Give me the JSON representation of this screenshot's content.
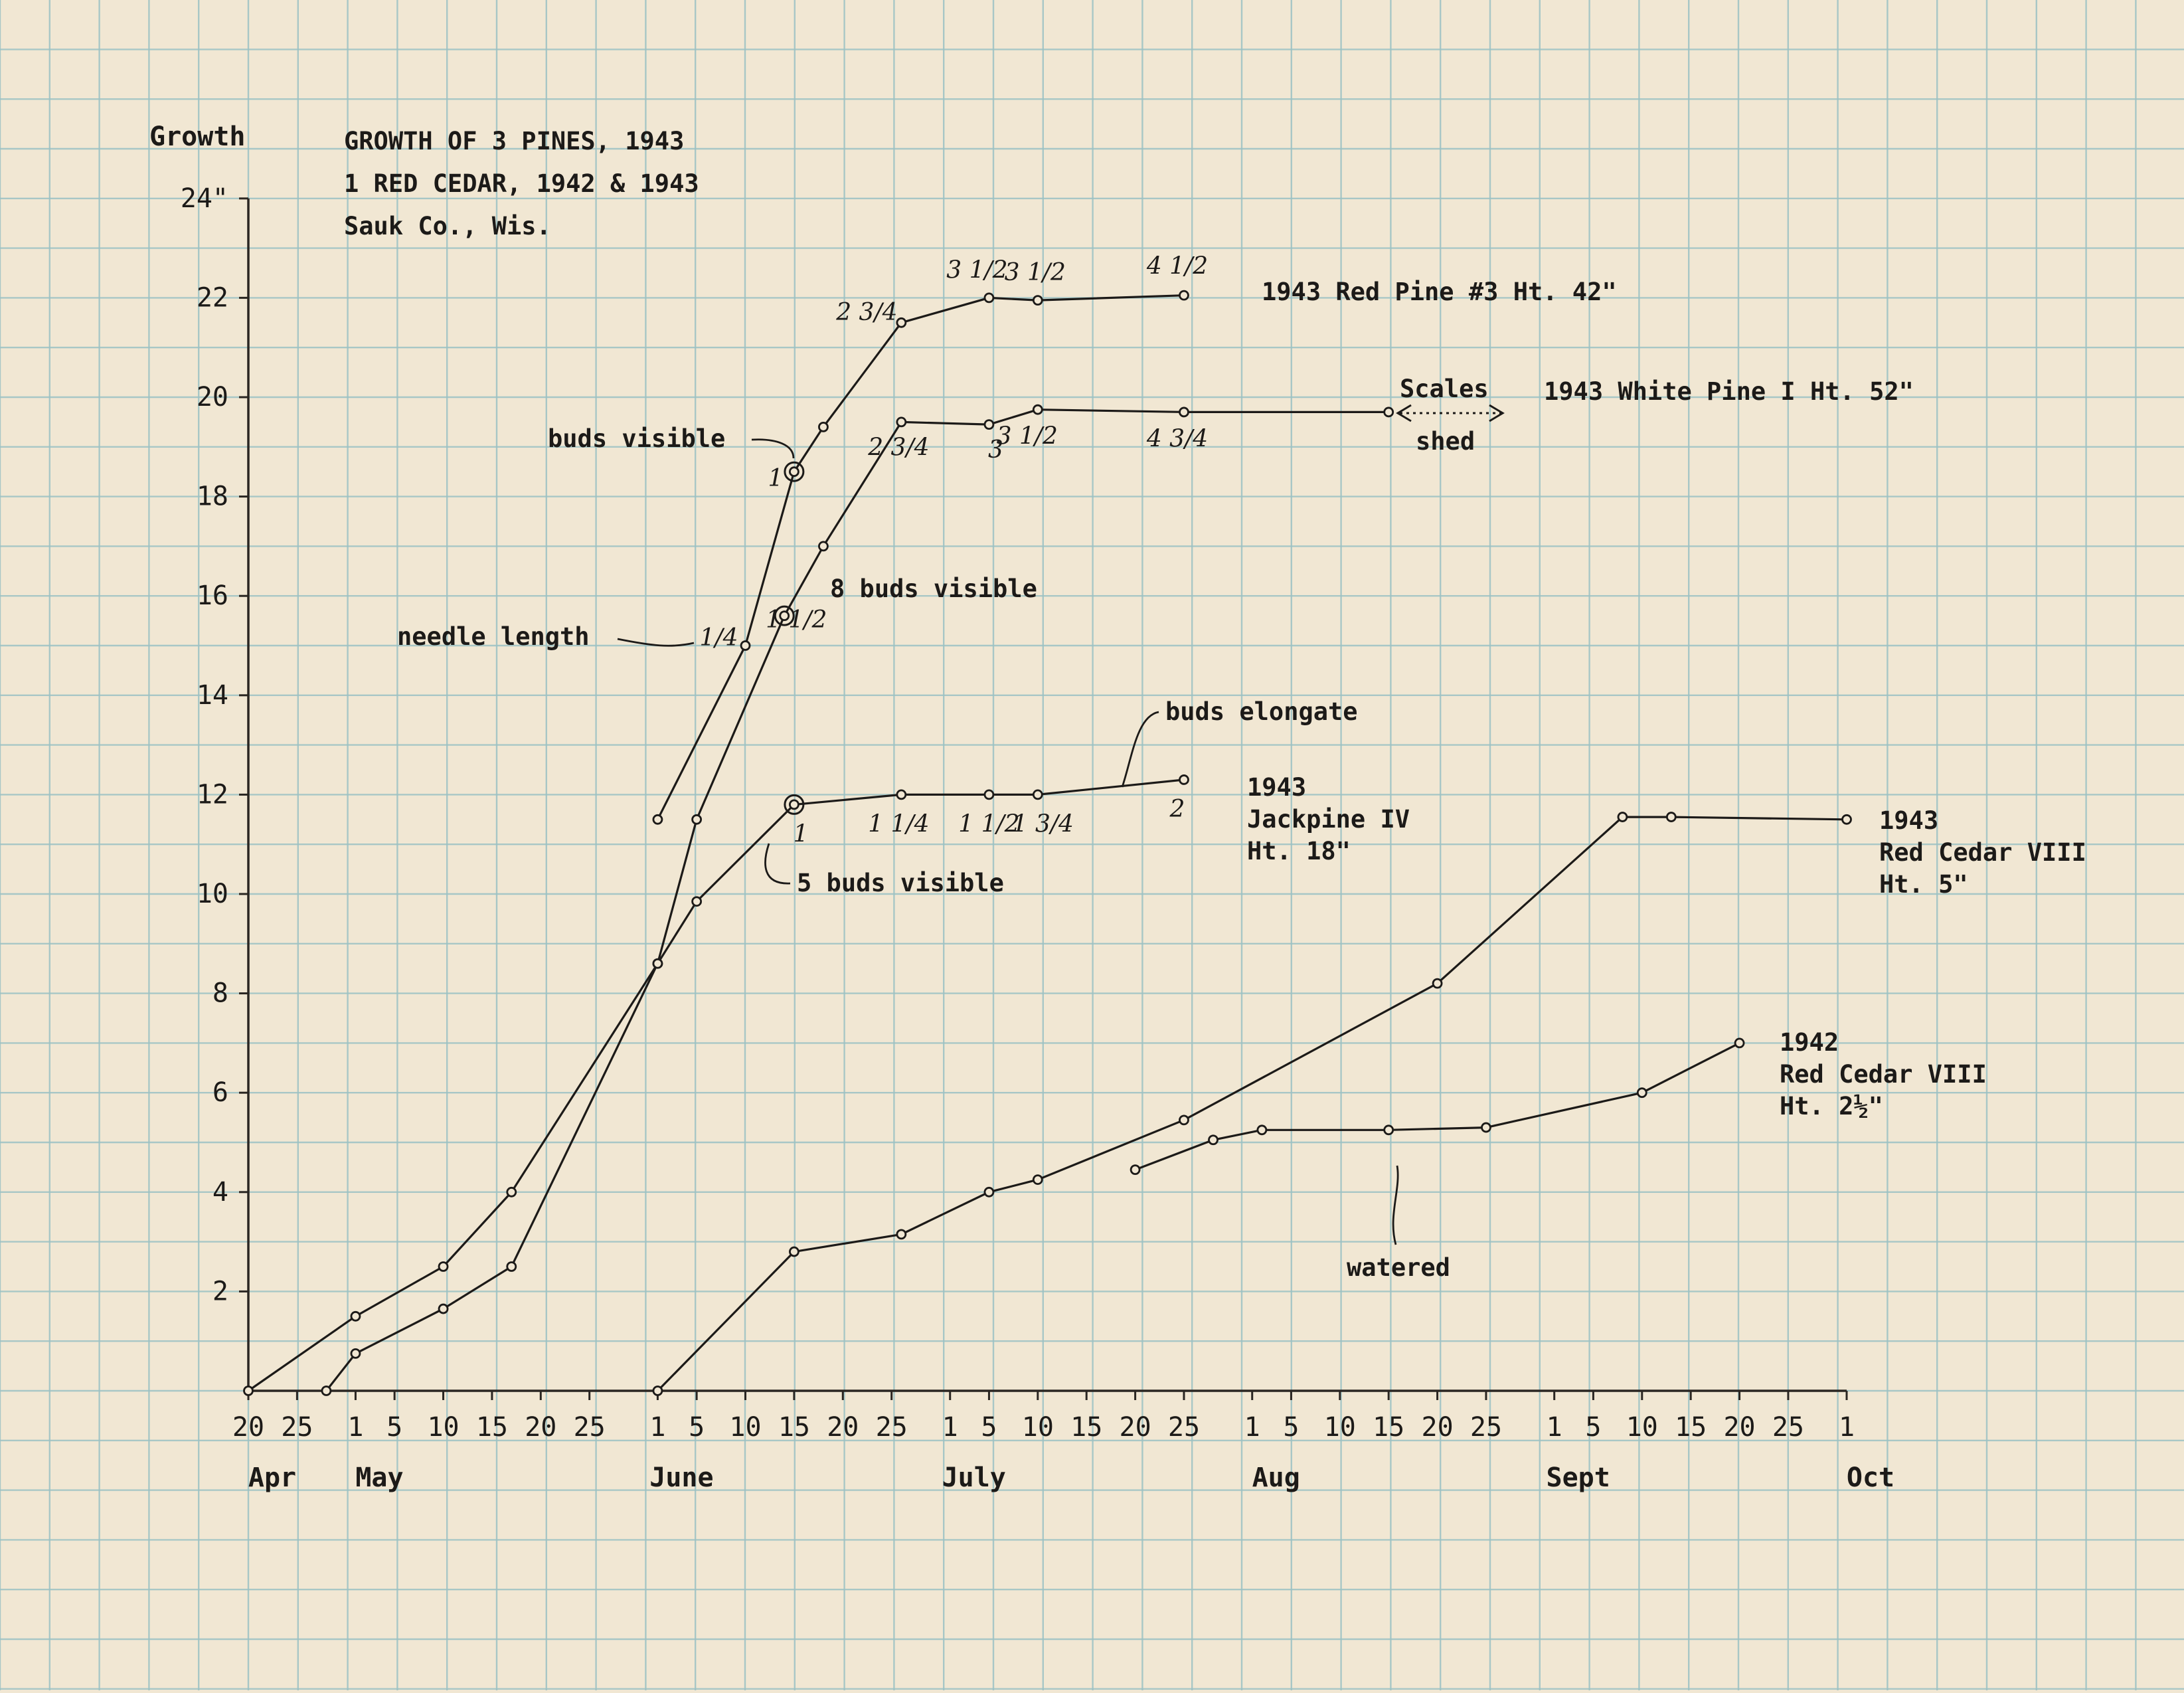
{
  "chart_data": {
    "type": "line",
    "title_lines": [
      "GROWTH OF 3 PINES, 1943",
      "1 RED CEDAR, 1942 & 1943",
      "Sauk Co., Wis."
    ],
    "ylabel": "Growth",
    "ylim": [
      0,
      24
    ],
    "yticks": [
      {
        "value": 2,
        "label": "2"
      },
      {
        "value": 4,
        "label": "4"
      },
      {
        "value": 6,
        "label": "6"
      },
      {
        "value": 8,
        "label": "8"
      },
      {
        "value": 10,
        "label": "10"
      },
      {
        "value": 12,
        "label": "12"
      },
      {
        "value": 14,
        "label": "14"
      },
      {
        "value": 16,
        "label": "16"
      },
      {
        "value": 18,
        "label": "18"
      },
      {
        "value": 20,
        "label": "20"
      },
      {
        "value": 22,
        "label": "22"
      },
      {
        "value": 24,
        "label": "24\""
      }
    ],
    "xlim": [
      "Apr 20",
      "Oct 1"
    ],
    "xticks": [
      {
        "date": "Apr 20",
        "label": "20"
      },
      {
        "date": "Apr 25",
        "label": "25"
      },
      {
        "date": "May 1",
        "label": "1"
      },
      {
        "date": "May 5",
        "label": "5"
      },
      {
        "date": "May 10",
        "label": "10"
      },
      {
        "date": "May 15",
        "label": "15"
      },
      {
        "date": "May 20",
        "label": "20"
      },
      {
        "date": "May 25",
        "label": "25"
      },
      {
        "date": "Jun 1",
        "label": "1"
      },
      {
        "date": "Jun 5",
        "label": "5"
      },
      {
        "date": "Jun 10",
        "label": "10"
      },
      {
        "date": "Jun 15",
        "label": "15"
      },
      {
        "date": "Jun 20",
        "label": "20"
      },
      {
        "date": "Jun 25",
        "label": "25"
      },
      {
        "date": "Jul 1",
        "label": "1"
      },
      {
        "date": "Jul 5",
        "label": "5"
      },
      {
        "date": "Jul 10",
        "label": "10"
      },
      {
        "date": "Jul 15",
        "label": "15"
      },
      {
        "date": "Jul 20",
        "label": "20"
      },
      {
        "date": "Jul 25",
        "label": "25"
      },
      {
        "date": "Aug 1",
        "label": "1"
      },
      {
        "date": "Aug 5",
        "label": "5"
      },
      {
        "date": "Aug 10",
        "label": "10"
      },
      {
        "date": "Aug 15",
        "label": "15"
      },
      {
        "date": "Aug 20",
        "label": "20"
      },
      {
        "date": "Aug 25",
        "label": "25"
      },
      {
        "date": "Sep 1",
        "label": "1"
      },
      {
        "date": "Sep 5",
        "label": "5"
      },
      {
        "date": "Sep 10",
        "label": "10"
      },
      {
        "date": "Sep 15",
        "label": "15"
      },
      {
        "date": "Sep 20",
        "label": "20"
      },
      {
        "date": "Sep 25",
        "label": "25"
      },
      {
        "date": "Oct 1",
        "label": "1"
      }
    ],
    "months": [
      {
        "date": "Apr 20",
        "label": "Apr"
      },
      {
        "date": "May 1",
        "label": "May"
      },
      {
        "date": "Jun 1",
        "label": "June"
      },
      {
        "date": "Jul 1",
        "label": "July"
      },
      {
        "date": "Aug 1",
        "label": "Aug"
      },
      {
        "date": "Sep 1",
        "label": "Sept"
      },
      {
        "date": "Oct 1",
        "label": "Oct"
      }
    ],
    "series": [
      {
        "name": "1943 Red Pine #3  Ht. 42\"",
        "points": [
          {
            "x": "Jun 1",
            "y": 11.5
          },
          {
            "x": "Jun 10",
            "y": 15.0
          },
          {
            "x": "Jun 15",
            "y": 18.5
          },
          {
            "x": "Jun 18",
            "y": 19.4
          },
          {
            "x": "Jun 26",
            "y": 21.5
          },
          {
            "x": "Jul 5",
            "y": 22.0
          },
          {
            "x": "Jul 10",
            "y": 21.95
          },
          {
            "x": "Jul 25",
            "y": 22.05
          }
        ]
      },
      {
        "name": "1943 White Pine I  Ht. 52\"",
        "points": [
          {
            "x": "Apr 20",
            "y": 0
          },
          {
            "x": "May 1",
            "y": 1.5
          },
          {
            "x": "May 10",
            "y": 2.5
          },
          {
            "x": "May 17",
            "y": 4.0
          },
          {
            "x": "Jun 1",
            "y": 8.6
          },
          {
            "x": "Jun 5",
            "y": 11.5
          },
          {
            "x": "Jun 14",
            "y": 15.6
          },
          {
            "x": "Jun 18",
            "y": 17.0
          },
          {
            "x": "Jun 26",
            "y": 19.5
          },
          {
            "x": "Jul 5",
            "y": 19.45
          },
          {
            "x": "Jul 10",
            "y": 19.75
          },
          {
            "x": "Jul 25",
            "y": 19.7
          },
          {
            "x": "Aug 15",
            "y": 19.7
          }
        ]
      },
      {
        "name": "1943 Jackpine IV  Ht. 18\"",
        "points": [
          {
            "x": "Apr 28",
            "y": 0
          },
          {
            "x": "May 1",
            "y": 0.75
          },
          {
            "x": "May 10",
            "y": 1.65
          },
          {
            "x": "May 17",
            "y": 2.5
          },
          {
            "x": "Jun 1",
            "y": 8.6
          },
          {
            "x": "Jun 5",
            "y": 9.85
          },
          {
            "x": "Jun 15",
            "y": 11.8
          },
          {
            "x": "Jun 26",
            "y": 12.0
          },
          {
            "x": "Jul 5",
            "y": 12.0
          },
          {
            "x": "Jul 10",
            "y": 12.0
          },
          {
            "x": "Jul 25",
            "y": 12.3
          }
        ]
      },
      {
        "name": "1943 Red Cedar VIII  Ht. 5\"",
        "points": [
          {
            "x": "Jun 1",
            "y": 0
          },
          {
            "x": "Jun 15",
            "y": 2.8
          },
          {
            "x": "Jun 26",
            "y": 3.15
          },
          {
            "x": "Jul 5",
            "y": 4.0
          },
          {
            "x": "Jul 10",
            "y": 4.25
          },
          {
            "x": "Jul 25",
            "y": 5.45
          },
          {
            "x": "Aug 20",
            "y": 8.2
          },
          {
            "x": "Sep 8",
            "y": 11.55
          },
          {
            "x": "Sep 13",
            "y": 11.55
          },
          {
            "x": "Oct 1",
            "y": 11.5
          }
        ]
      },
      {
        "name": "1942 Red Cedar VIII  Ht. 2½\"",
        "points": [
          {
            "x": "Jul 20",
            "y": 4.45
          },
          {
            "x": "Jul 28",
            "y": 5.05
          },
          {
            "x": "Aug 2",
            "y": 5.25
          },
          {
            "x": "Aug 15",
            "y": 5.25
          },
          {
            "x": "Aug 25",
            "y": 5.3
          },
          {
            "x": "Sep 10",
            "y": 6.0
          },
          {
            "x": "Sep 20",
            "y": 7.0
          }
        ]
      }
    ],
    "series_labels": [
      {
        "lines": [
          "1943 Red Pine #3  Ht. 42\""
        ]
      },
      {
        "lines": [
          "1943 White Pine I  Ht. 52\""
        ]
      },
      {
        "lines": [
          "1943",
          "Jackpine IV",
          "Ht. 18\""
        ]
      },
      {
        "lines": [
          "1943",
          "Red Cedar VIII",
          "Ht. 5\""
        ]
      },
      {
        "lines": [
          "1942",
          "Red Cedar VIII",
          "Ht. 2½\""
        ]
      }
    ],
    "needle_lengths": [
      {
        "x": "Jun 10",
        "y": 15.0,
        "label": "1/4"
      },
      {
        "x": "Jun 15",
        "y": 18.5,
        "label": "1"
      },
      {
        "x": "Jun 26",
        "y": 21.5,
        "label": "2 3/4"
      },
      {
        "x": "Jul 5",
        "y": 22.0,
        "label": "3 1/2"
      },
      {
        "x": "Jul 10",
        "y": 21.95,
        "label": "3 1/2"
      },
      {
        "x": "Jul 25",
        "y": 22.05,
        "label": "4 1/2"
      },
      {
        "x": "Jun 14",
        "y": 15.6,
        "label": "1 1/2"
      },
      {
        "x": "Jun 26",
        "y": 19.5,
        "label": "2 3/4"
      },
      {
        "x": "Jul 5",
        "y": 19.45,
        "label": "3"
      },
      {
        "x": "Jul 10",
        "y": 19.75,
        "label": "3 1/2"
      },
      {
        "x": "Jul 25",
        "y": 19.7,
        "label": "4 3/4"
      },
      {
        "x": "Jun 15",
        "y": 11.8,
        "label": "1"
      },
      {
        "x": "Jun 26",
        "y": 12.0,
        "label": "1 1/4"
      },
      {
        "x": "Jul 5",
        "y": 12.0,
        "label": "1 1/2"
      },
      {
        "x": "Jul 10",
        "y": 12.0,
        "label": "1 3/4"
      },
      {
        "x": "Jul 25",
        "y": 12.3,
        "label": "2"
      }
    ],
    "annotations": {
      "buds_visible": "buds visible",
      "eight_buds_visible": "8 buds visible",
      "needle_length": "needle length",
      "buds_elongate": "buds elongate",
      "five_buds_visible": "5 buds visible",
      "scales": "Scales",
      "shed": "shed",
      "watered": "watered"
    },
    "colors": {
      "paper": "#f1e7d3",
      "grid": "#9cc2c4",
      "ink": "#1c1a18",
      "axis": "#2a2622"
    }
  }
}
